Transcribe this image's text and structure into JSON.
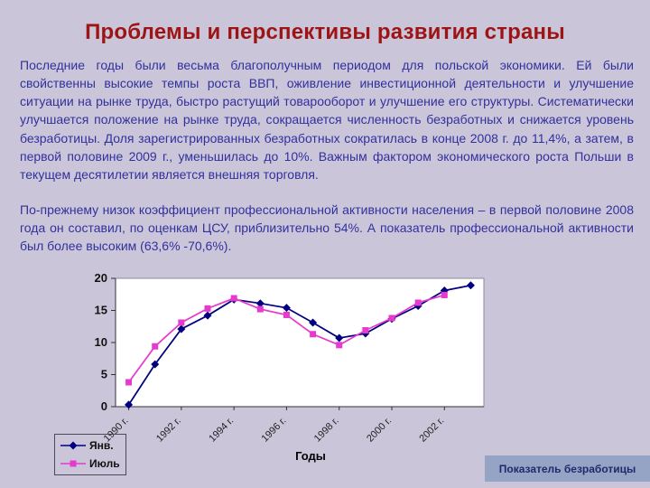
{
  "slide": {
    "title": "Проблемы и перспективы развития страны",
    "paragraph1": "Последние годы были весьма благополучным периодом для польской экономики. Ей были свойственны высокие темпы роста ВВП, оживление инвестиционной деятельности и улучшение ситуации на рынке труда, быстро растущий товарооборот и улучшение его структуры. Систематически улучшается положение на рынке труда, сокращается численность безработных и снижается уровень безработицы. Доля зарегистрированных безработных сократилась в конце 2008 г. до 11,4%, а затем, в первой половине 2009 г., уменьшилась до 10%. Важным фактором экономического роста Польши в текущем десятилетии является внешняя торговля.",
    "paragraph2": "По-прежнему низок коэффициент профессиональной активности населения – в первой половине 2008 года он составил, по оценкам ЦСУ, приблизительно 54%. А показатель профессиональной активности был более высоким (63,6% -70,6%).",
    "chart_caption": "Показатель безработицы"
  },
  "colors": {
    "background": "#cbc5da",
    "title_text": "#9c1414",
    "body_text": "#31319c",
    "caption_box": "#95a3c4",
    "series_jan": "#000080",
    "series_jul": "#e63acd"
  },
  "chart_data": {
    "type": "line",
    "title": "",
    "xlabel": "Годы",
    "ylabel": "",
    "ylim": [
      0,
      20
    ],
    "yticks": [
      0,
      5,
      10,
      15,
      20
    ],
    "x": [
      1990,
      1991,
      1992,
      1993,
      1994,
      1995,
      1996,
      1997,
      1998,
      1999,
      2000,
      2001,
      2002,
      2003
    ],
    "xtick_labels": [
      "1990 г.",
      "1992 г.",
      "1994 г.",
      "1996 г.",
      "1998 г.",
      "2000 г.",
      "2002 г."
    ],
    "grid": false,
    "legend_position": "bottom-left",
    "series": [
      {
        "name": "Янв.",
        "marker": "diamond",
        "color": "#000080",
        "values": [
          0.3,
          6.6,
          12.1,
          14.2,
          16.7,
          16.1,
          15.4,
          13.1,
          10.7,
          11.4,
          13.7,
          15.7,
          18.1,
          18.9
        ]
      },
      {
        "name": "Июль",
        "marker": "square",
        "color": "#e63acd",
        "values": [
          3.8,
          9.4,
          13.1,
          15.3,
          16.9,
          15.2,
          14.3,
          11.3,
          9.6,
          11.9,
          13.8,
          16.2,
          17.4
        ]
      }
    ]
  }
}
